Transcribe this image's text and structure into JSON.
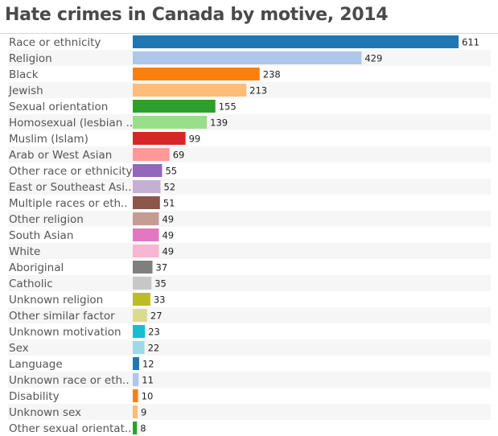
{
  "chart_data": {
    "type": "bar",
    "orientation": "horizontal",
    "title": "Hate crimes in Canada by motive, 2014",
    "xlabel": "",
    "ylabel": "",
    "xlim": [
      0,
      611
    ],
    "grid": false,
    "categories": [
      "Race or ethnicity",
      "Religion",
      "Black",
      "Jewish",
      "Sexual orientation",
      "Homosexual (lesbian ..",
      "Muslim (Islam)",
      "Arab or West Asian",
      "Other race or ethnicity",
      "East or Southeast Asi..",
      "Multiple races or eth..",
      "Other religion",
      "South Asian",
      "White",
      "Aboriginal",
      "Catholic",
      "Unknown religion",
      "Other similar factor",
      "Unknown motivation",
      "Sex",
      "Language",
      "Unknown race or eth..",
      "Disability",
      "Unknown sex",
      "Other sexual orientat.."
    ],
    "values": [
      611,
      429,
      238,
      213,
      155,
      139,
      99,
      69,
      55,
      52,
      51,
      49,
      49,
      49,
      37,
      35,
      33,
      27,
      23,
      22,
      12,
      11,
      10,
      9,
      8
    ],
    "colors": [
      "#1f77b4",
      "#aec7e8",
      "#ff7f0e",
      "#ffbb78",
      "#2ca02c",
      "#98df8a",
      "#d62728",
      "#ff9896",
      "#9467bd",
      "#c5b0d5",
      "#8c564b",
      "#c49c94",
      "#e377c2",
      "#f7b6d2",
      "#7f7f7f",
      "#c7c7c7",
      "#bcbd22",
      "#dbdb8d",
      "#17becf",
      "#9edae5",
      "#1f77b4",
      "#aec7e8",
      "#ff7f0e",
      "#ffbb78",
      "#2ca02c"
    ]
  }
}
